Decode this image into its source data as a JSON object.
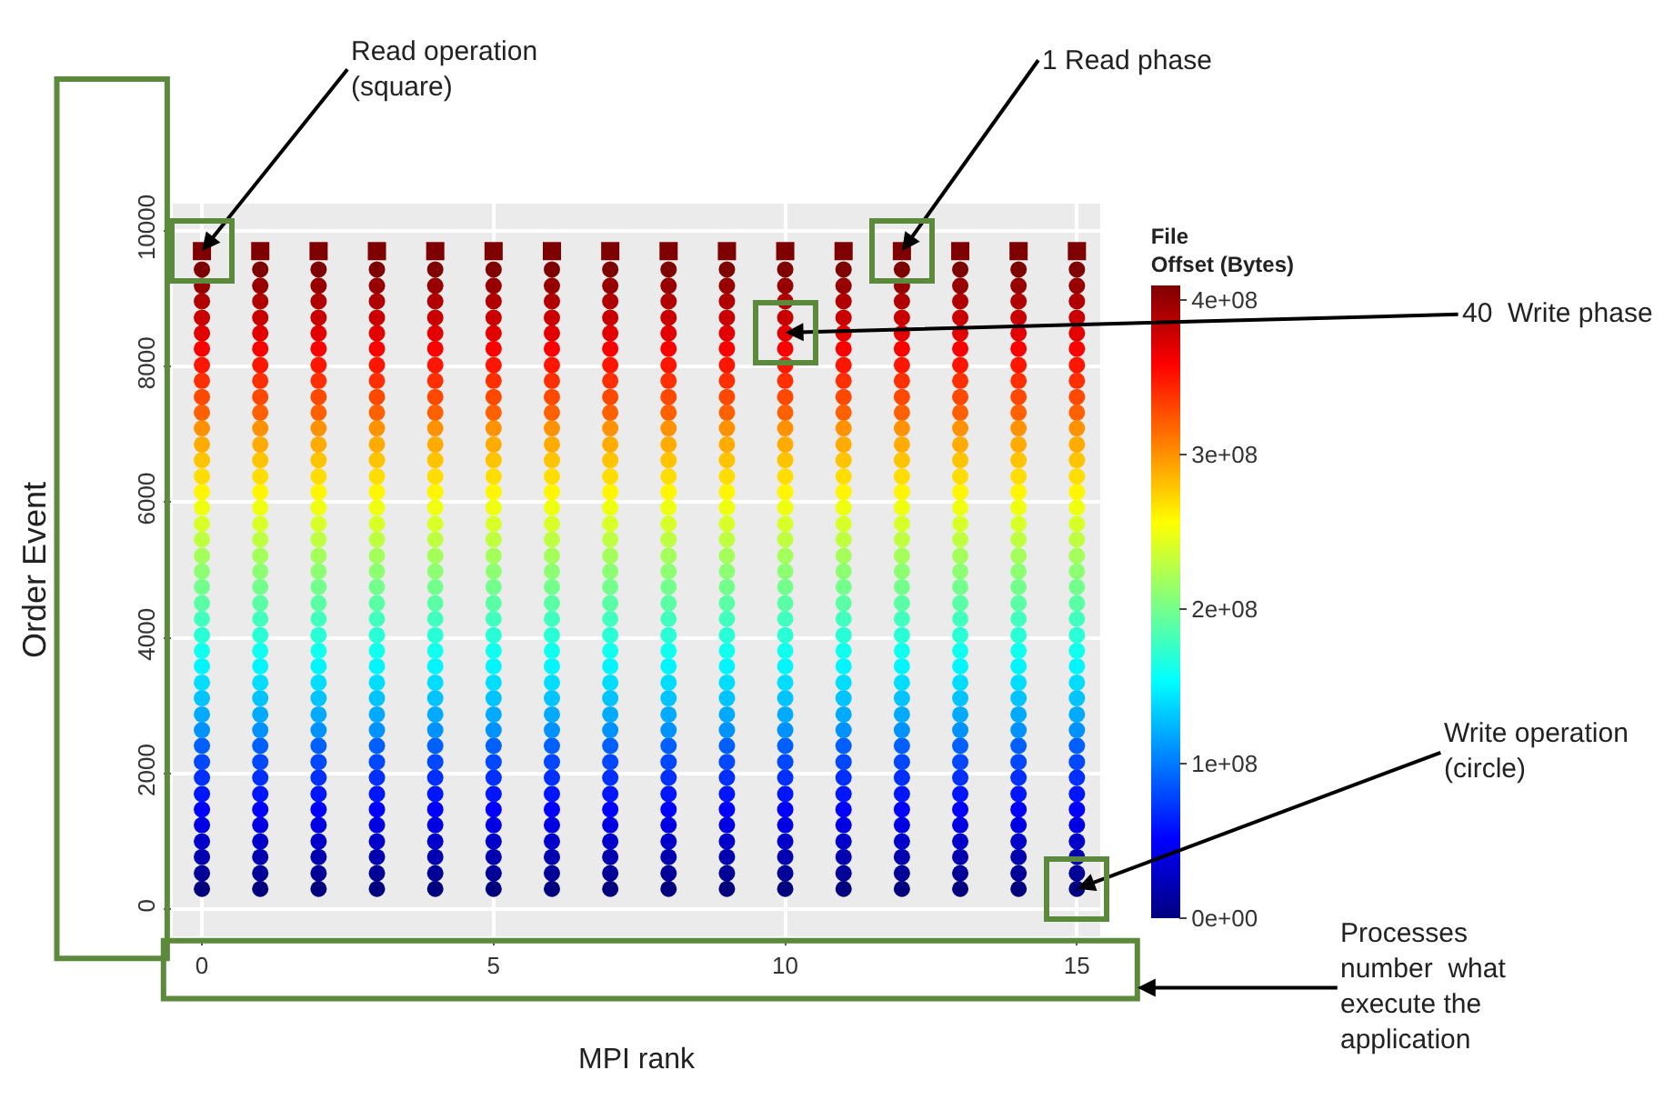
{
  "chart_data": {
    "type": "scatter",
    "xlabel": "MPI rank",
    "ylabel": "Order Event",
    "clabel": "File\nOffset (Bytes)",
    "xlim": [
      -0.5,
      15.4
    ],
    "xticks": [
      0,
      5,
      10,
      15
    ],
    "ylim": [
      -400,
      10400
    ],
    "yticks": [
      0,
      2000,
      4000,
      6000,
      8000,
      10000
    ],
    "clim": [
      0,
      410000000.0
    ],
    "cticks": [
      {
        "value": 0,
        "label": "0e+00"
      },
      {
        "value": 100000000.0,
        "label": "1e+08"
      },
      {
        "value": 200000000.0,
        "label": "2e+08"
      },
      {
        "value": 300000000.0,
        "label": "3e+08"
      },
      {
        "value": 400000000.0,
        "label": "4e+08"
      }
    ],
    "grid": true,
    "marker": "circle",
    "annotations": [
      {
        "text": "Read operation\n(square)",
        "x": 0,
        "y": 9700
      },
      {
        "text": "1 Read phase",
        "x": 12,
        "y": 9700
      },
      {
        "text": "40  Write phase",
        "x": 10,
        "y": 8500
      },
      {
        "text": "Write operation\n(circle)",
        "x": 15,
        "y": 300
      },
      "Processes\nnumber  what\nexecute the\napplication"
    ],
    "x": [
      0,
      1,
      2,
      3,
      4,
      5,
      6,
      7,
      8,
      9,
      10,
      11,
      12,
      13,
      14,
      15
    ],
    "series": [
      {
        "values": [
          300,
          300,
          300,
          300,
          300,
          300,
          300,
          300,
          300,
          300,
          300,
          300,
          300,
          300,
          300,
          300
        ],
        "cvalues": [
          0,
          0,
          0,
          0,
          0,
          0,
          0,
          0,
          0,
          0,
          0,
          0,
          0,
          0,
          0,
          0
        ]
      },
      {
        "values": [
          530,
          530,
          530,
          530,
          530,
          530,
          530,
          530,
          530,
          530,
          530,
          530,
          530,
          530,
          530,
          530
        ],
        "cvalues": [
          10000000.0,
          10000000.0,
          10000000.0,
          10000000.0,
          10000000.0,
          10000000.0,
          10000000.0,
          10000000.0,
          10000000.0,
          10000000.0,
          10000000.0,
          10000000.0,
          10000000.0,
          10000000.0,
          10000000.0,
          10000000.0
        ]
      },
      {
        "values": [
          770,
          770,
          770,
          770,
          770,
          770,
          770,
          770,
          770,
          770,
          770,
          770,
          770,
          770,
          770,
          770
        ],
        "cvalues": [
          20000000.0,
          20000000.0,
          20000000.0,
          20000000.0,
          20000000.0,
          20000000.0,
          20000000.0,
          20000000.0,
          20000000.0,
          20000000.0,
          20000000.0,
          20000000.0,
          20000000.0,
          20000000.0,
          20000000.0,
          20000000.0
        ]
      },
      {
        "values": [
          1000,
          1000,
          1000,
          1000,
          1000,
          1000,
          1000,
          1000,
          1000,
          1000,
          1000,
          1000,
          1000,
          1000,
          1000,
          1000
        ],
        "cvalues": [
          30000000.0,
          30000000.0,
          30000000.0,
          30000000.0,
          30000000.0,
          30000000.0,
          30000000.0,
          30000000.0,
          30000000.0,
          30000000.0,
          30000000.0,
          30000000.0,
          30000000.0,
          30000000.0,
          30000000.0,
          30000000.0
        ]
      },
      {
        "values": [
          1240,
          1240,
          1240,
          1240,
          1240,
          1240,
          1240,
          1240,
          1240,
          1240,
          1240,
          1240,
          1240,
          1240,
          1240,
          1240
        ],
        "cvalues": [
          40000000.0,
          40000000.0,
          40000000.0,
          40000000.0,
          40000000.0,
          40000000.0,
          40000000.0,
          40000000.0,
          40000000.0,
          40000000.0,
          40000000.0,
          40000000.0,
          40000000.0,
          40000000.0,
          40000000.0,
          40000000.0
        ]
      },
      {
        "values": [
          1470,
          1470,
          1470,
          1470,
          1470,
          1470,
          1470,
          1470,
          1470,
          1470,
          1470,
          1470,
          1470,
          1470,
          1470,
          1470
        ],
        "cvalues": [
          50000000.0,
          50000000.0,
          50000000.0,
          50000000.0,
          50000000.0,
          50000000.0,
          50000000.0,
          50000000.0,
          50000000.0,
          50000000.0,
          50000000.0,
          50000000.0,
          50000000.0,
          50000000.0,
          50000000.0,
          50000000.0
        ]
      },
      {
        "values": [
          1700,
          1700,
          1700,
          1700,
          1700,
          1700,
          1700,
          1700,
          1700,
          1700,
          1700,
          1700,
          1700,
          1700,
          1700,
          1700
        ],
        "cvalues": [
          60000000.0,
          60000000.0,
          60000000.0,
          60000000.0,
          60000000.0,
          60000000.0,
          60000000.0,
          60000000.0,
          60000000.0,
          60000000.0,
          60000000.0,
          60000000.0,
          60000000.0,
          60000000.0,
          60000000.0,
          60000000.0
        ]
      },
      {
        "values": [
          1940,
          1940,
          1940,
          1940,
          1940,
          1940,
          1940,
          1940,
          1940,
          1940,
          1940,
          1940,
          1940,
          1940,
          1940,
          1940
        ],
        "cvalues": [
          70000000.0,
          70000000.0,
          70000000.0,
          70000000.0,
          70000000.0,
          70000000.0,
          70000000.0,
          70000000.0,
          70000000.0,
          70000000.0,
          70000000.0,
          70000000.0,
          70000000.0,
          70000000.0,
          70000000.0,
          70000000.0
        ]
      },
      {
        "values": [
          2170,
          2170,
          2170,
          2170,
          2170,
          2170,
          2170,
          2170,
          2170,
          2170,
          2170,
          2170,
          2170,
          2170,
          2170,
          2170
        ],
        "cvalues": [
          80000000.0,
          80000000.0,
          80000000.0,
          80000000.0,
          80000000.0,
          80000000.0,
          80000000.0,
          80000000.0,
          80000000.0,
          80000000.0,
          80000000.0,
          80000000.0,
          80000000.0,
          80000000.0,
          80000000.0,
          80000000.0
        ]
      },
      {
        "values": [
          2410,
          2410,
          2410,
          2410,
          2410,
          2410,
          2410,
          2410,
          2410,
          2410,
          2410,
          2410,
          2410,
          2410,
          2410,
          2410
        ],
        "cvalues": [
          90000000.0,
          90000000.0,
          90000000.0,
          90000000.0,
          90000000.0,
          90000000.0,
          90000000.0,
          90000000.0,
          90000000.0,
          90000000.0,
          90000000.0,
          90000000.0,
          90000000.0,
          90000000.0,
          90000000.0,
          90000000.0
        ]
      },
      {
        "values": [
          2640,
          2640,
          2640,
          2640,
          2640,
          2640,
          2640,
          2640,
          2640,
          2640,
          2640,
          2640,
          2640,
          2640,
          2640,
          2640
        ],
        "cvalues": [
          110000000.0,
          110000000.0,
          110000000.0,
          110000000.0,
          110000000.0,
          110000000.0,
          110000000.0,
          110000000.0,
          110000000.0,
          110000000.0,
          110000000.0,
          110000000.0,
          110000000.0,
          110000000.0,
          110000000.0,
          110000000.0
        ]
      },
      {
        "values": [
          2870,
          2870,
          2870,
          2870,
          2870,
          2870,
          2870,
          2870,
          2870,
          2870,
          2870,
          2870,
          2870,
          2870,
          2870,
          2870
        ],
        "cvalues": [
          120000000.0,
          120000000.0,
          120000000.0,
          120000000.0,
          120000000.0,
          120000000.0,
          120000000.0,
          120000000.0,
          120000000.0,
          120000000.0,
          120000000.0,
          120000000.0,
          120000000.0,
          120000000.0,
          120000000.0,
          120000000.0
        ]
      },
      {
        "values": [
          3110,
          3110,
          3110,
          3110,
          3110,
          3110,
          3110,
          3110,
          3110,
          3110,
          3110,
          3110,
          3110,
          3110,
          3110,
          3110
        ],
        "cvalues": [
          130000000.0,
          130000000.0,
          130000000.0,
          130000000.0,
          130000000.0,
          130000000.0,
          130000000.0,
          130000000.0,
          130000000.0,
          130000000.0,
          130000000.0,
          130000000.0,
          130000000.0,
          130000000.0,
          130000000.0,
          130000000.0
        ]
      },
      {
        "values": [
          3340,
          3340,
          3340,
          3340,
          3340,
          3340,
          3340,
          3340,
          3340,
          3340,
          3340,
          3340,
          3340,
          3340,
          3340,
          3340
        ],
        "cvalues": [
          140000000.0,
          140000000.0,
          140000000.0,
          140000000.0,
          140000000.0,
          140000000.0,
          140000000.0,
          140000000.0,
          140000000.0,
          140000000.0,
          140000000.0,
          140000000.0,
          140000000.0,
          140000000.0,
          140000000.0,
          140000000.0
        ]
      },
      {
        "values": [
          3580,
          3580,
          3580,
          3580,
          3580,
          3580,
          3580,
          3580,
          3580,
          3580,
          3580,
          3580,
          3580,
          3580,
          3580,
          3580
        ],
        "cvalues": [
          150000000.0,
          150000000.0,
          150000000.0,
          150000000.0,
          150000000.0,
          150000000.0,
          150000000.0,
          150000000.0,
          150000000.0,
          150000000.0,
          150000000.0,
          150000000.0,
          150000000.0,
          150000000.0,
          150000000.0,
          150000000.0
        ]
      },
      {
        "values": [
          3810,
          3810,
          3810,
          3810,
          3810,
          3810,
          3810,
          3810,
          3810,
          3810,
          3810,
          3810,
          3810,
          3810,
          3810,
          3810
        ],
        "cvalues": [
          160000000.0,
          160000000.0,
          160000000.0,
          160000000.0,
          160000000.0,
          160000000.0,
          160000000.0,
          160000000.0,
          160000000.0,
          160000000.0,
          160000000.0,
          160000000.0,
          160000000.0,
          160000000.0,
          160000000.0,
          160000000.0
        ]
      },
      {
        "values": [
          4040,
          4040,
          4040,
          4040,
          4040,
          4040,
          4040,
          4040,
          4040,
          4040,
          4040,
          4040,
          4040,
          4040,
          4040,
          4040
        ],
        "cvalues": [
          170000000.0,
          170000000.0,
          170000000.0,
          170000000.0,
          170000000.0,
          170000000.0,
          170000000.0,
          170000000.0,
          170000000.0,
          170000000.0,
          170000000.0,
          170000000.0,
          170000000.0,
          170000000.0,
          170000000.0,
          170000000.0
        ]
      },
      {
        "values": [
          4280,
          4280,
          4280,
          4280,
          4280,
          4280,
          4280,
          4280,
          4280,
          4280,
          4280,
          4280,
          4280,
          4280,
          4280,
          4280
        ],
        "cvalues": [
          180000000.0,
          180000000.0,
          180000000.0,
          180000000.0,
          180000000.0,
          180000000.0,
          180000000.0,
          180000000.0,
          180000000.0,
          180000000.0,
          180000000.0,
          180000000.0,
          180000000.0,
          180000000.0,
          180000000.0,
          180000000.0
        ]
      },
      {
        "values": [
          4510,
          4510,
          4510,
          4510,
          4510,
          4510,
          4510,
          4510,
          4510,
          4510,
          4510,
          4510,
          4510,
          4510,
          4510,
          4510
        ],
        "cvalues": [
          190000000.0,
          190000000.0,
          190000000.0,
          190000000.0,
          190000000.0,
          190000000.0,
          190000000.0,
          190000000.0,
          190000000.0,
          190000000.0,
          190000000.0,
          190000000.0,
          190000000.0,
          190000000.0,
          190000000.0,
          190000000.0
        ]
      },
      {
        "values": [
          4750,
          4750,
          4750,
          4750,
          4750,
          4750,
          4750,
          4750,
          4750,
          4750,
          4750,
          4750,
          4750,
          4750,
          4750,
          4750
        ],
        "cvalues": [
          200000000.0,
          200000000.0,
          200000000.0,
          200000000.0,
          200000000.0,
          200000000.0,
          200000000.0,
          200000000.0,
          200000000.0,
          200000000.0,
          200000000.0,
          200000000.0,
          200000000.0,
          200000000.0,
          200000000.0,
          200000000.0
        ]
      },
      {
        "values": [
          4980,
          4980,
          4980,
          4980,
          4980,
          4980,
          4980,
          4980,
          4980,
          4980,
          4980,
          4980,
          4980,
          4980,
          4980,
          4980
        ],
        "cvalues": [
          210000000.0,
          210000000.0,
          210000000.0,
          210000000.0,
          210000000.0,
          210000000.0,
          210000000.0,
          210000000.0,
          210000000.0,
          210000000.0,
          210000000.0,
          210000000.0,
          210000000.0,
          210000000.0,
          210000000.0,
          210000000.0
        ]
      },
      {
        "values": [
          5210,
          5210,
          5210,
          5210,
          5210,
          5210,
          5210,
          5210,
          5210,
          5210,
          5210,
          5210,
          5210,
          5210,
          5210,
          5210
        ],
        "cvalues": [
          220000000.0,
          220000000.0,
          220000000.0,
          220000000.0,
          220000000.0,
          220000000.0,
          220000000.0,
          220000000.0,
          220000000.0,
          220000000.0,
          220000000.0,
          220000000.0,
          220000000.0,
          220000000.0,
          220000000.0,
          220000000.0
        ]
      },
      {
        "values": [
          5450,
          5450,
          5450,
          5450,
          5450,
          5450,
          5450,
          5450,
          5450,
          5450,
          5450,
          5450,
          5450,
          5450,
          5450,
          5450
        ],
        "cvalues": [
          230000000.0,
          230000000.0,
          230000000.0,
          230000000.0,
          230000000.0,
          230000000.0,
          230000000.0,
          230000000.0,
          230000000.0,
          230000000.0,
          230000000.0,
          230000000.0,
          230000000.0,
          230000000.0,
          230000000.0,
          230000000.0
        ]
      },
      {
        "values": [
          5680,
          5680,
          5680,
          5680,
          5680,
          5680,
          5680,
          5680,
          5680,
          5680,
          5680,
          5680,
          5680,
          5680,
          5680,
          5680
        ],
        "cvalues": [
          240000000.0,
          240000000.0,
          240000000.0,
          240000000.0,
          240000000.0,
          240000000.0,
          240000000.0,
          240000000.0,
          240000000.0,
          240000000.0,
          240000000.0,
          240000000.0,
          240000000.0,
          240000000.0,
          240000000.0,
          240000000.0
        ]
      },
      {
        "values": [
          5920,
          5920,
          5920,
          5920,
          5920,
          5920,
          5920,
          5920,
          5920,
          5920,
          5920,
          5920,
          5920,
          5920,
          5920,
          5920
        ],
        "cvalues": [
          250000000.0,
          250000000.0,
          250000000.0,
          250000000.0,
          250000000.0,
          250000000.0,
          250000000.0,
          250000000.0,
          250000000.0,
          250000000.0,
          250000000.0,
          250000000.0,
          250000000.0,
          250000000.0,
          250000000.0,
          250000000.0
        ]
      },
      {
        "values": [
          6150,
          6150,
          6150,
          6150,
          6150,
          6150,
          6150,
          6150,
          6150,
          6150,
          6150,
          6150,
          6150,
          6150,
          6150,
          6150
        ],
        "cvalues": [
          260000000.0,
          260000000.0,
          260000000.0,
          260000000.0,
          260000000.0,
          260000000.0,
          260000000.0,
          260000000.0,
          260000000.0,
          260000000.0,
          260000000.0,
          260000000.0,
          260000000.0,
          260000000.0,
          260000000.0,
          260000000.0
        ]
      },
      {
        "values": [
          6380,
          6380,
          6380,
          6380,
          6380,
          6380,
          6380,
          6380,
          6380,
          6380,
          6380,
          6380,
          6380,
          6380,
          6380,
          6380
        ],
        "cvalues": [
          270000000.0,
          270000000.0,
          270000000.0,
          270000000.0,
          270000000.0,
          270000000.0,
          270000000.0,
          270000000.0,
          270000000.0,
          270000000.0,
          270000000.0,
          270000000.0,
          270000000.0,
          270000000.0,
          270000000.0,
          270000000.0
        ]
      },
      {
        "values": [
          6620,
          6620,
          6620,
          6620,
          6620,
          6620,
          6620,
          6620,
          6620,
          6620,
          6620,
          6620,
          6620,
          6620,
          6620,
          6620
        ],
        "cvalues": [
          280000000.0,
          280000000.0,
          280000000.0,
          280000000.0,
          280000000.0,
          280000000.0,
          280000000.0,
          280000000.0,
          280000000.0,
          280000000.0,
          280000000.0,
          280000000.0,
          280000000.0,
          280000000.0,
          280000000.0,
          280000000.0
        ]
      },
      {
        "values": [
          6850,
          6850,
          6850,
          6850,
          6850,
          6850,
          6850,
          6850,
          6850,
          6850,
          6850,
          6850,
          6850,
          6850,
          6850,
          6850
        ],
        "cvalues": [
          290000000.0,
          290000000.0,
          290000000.0,
          290000000.0,
          290000000.0,
          290000000.0,
          290000000.0,
          290000000.0,
          290000000.0,
          290000000.0,
          290000000.0,
          290000000.0,
          290000000.0,
          290000000.0,
          290000000.0,
          290000000.0
        ]
      },
      {
        "values": [
          7090,
          7090,
          7090,
          7090,
          7090,
          7090,
          7090,
          7090,
          7090,
          7090,
          7090,
          7090,
          7090,
          7090,
          7090,
          7090
        ],
        "cvalues": [
          300000000.0,
          300000000.0,
          300000000.0,
          300000000.0,
          300000000.0,
          300000000.0,
          300000000.0,
          300000000.0,
          300000000.0,
          300000000.0,
          300000000.0,
          300000000.0,
          300000000.0,
          300000000.0,
          300000000.0,
          300000000.0
        ]
      },
      {
        "values": [
          7320,
          7320,
          7320,
          7320,
          7320,
          7320,
          7320,
          7320,
          7320,
          7320,
          7320,
          7320,
          7320,
          7320,
          7320,
          7320
        ],
        "cvalues": [
          320000000.0,
          320000000.0,
          320000000.0,
          320000000.0,
          320000000.0,
          320000000.0,
          320000000.0,
          320000000.0,
          320000000.0,
          320000000.0,
          320000000.0,
          320000000.0,
          320000000.0,
          320000000.0,
          320000000.0,
          320000000.0
        ]
      },
      {
        "values": [
          7550,
          7550,
          7550,
          7550,
          7550,
          7550,
          7550,
          7550,
          7550,
          7550,
          7550,
          7550,
          7550,
          7550,
          7550,
          7550
        ],
        "cvalues": [
          330000000.0,
          330000000.0,
          330000000.0,
          330000000.0,
          330000000.0,
          330000000.0,
          330000000.0,
          330000000.0,
          330000000.0,
          330000000.0,
          330000000.0,
          330000000.0,
          330000000.0,
          330000000.0,
          330000000.0,
          330000000.0
        ]
      },
      {
        "values": [
          7790,
          7790,
          7790,
          7790,
          7790,
          7790,
          7790,
          7790,
          7790,
          7790,
          7790,
          7790,
          7790,
          7790,
          7790,
          7790
        ],
        "cvalues": [
          340000000.0,
          340000000.0,
          340000000.0,
          340000000.0,
          340000000.0,
          340000000.0,
          340000000.0,
          340000000.0,
          340000000.0,
          340000000.0,
          340000000.0,
          340000000.0,
          340000000.0,
          340000000.0,
          340000000.0,
          340000000.0
        ]
      },
      {
        "values": [
          8020,
          8020,
          8020,
          8020,
          8020,
          8020,
          8020,
          8020,
          8020,
          8020,
          8020,
          8020,
          8020,
          8020,
          8020,
          8020
        ],
        "cvalues": [
          350000000.0,
          350000000.0,
          350000000.0,
          350000000.0,
          350000000.0,
          350000000.0,
          350000000.0,
          350000000.0,
          350000000.0,
          350000000.0,
          350000000.0,
          350000000.0,
          350000000.0,
          350000000.0,
          350000000.0,
          350000000.0
        ]
      },
      {
        "values": [
          8260,
          8260,
          8260,
          8260,
          8260,
          8260,
          8260,
          8260,
          8260,
          8260,
          8260,
          8260,
          8260,
          8260,
          8260,
          8260
        ],
        "cvalues": [
          360000000.0,
          360000000.0,
          360000000.0,
          360000000.0,
          360000000.0,
          360000000.0,
          360000000.0,
          360000000.0,
          360000000.0,
          360000000.0,
          360000000.0,
          360000000.0,
          360000000.0,
          360000000.0,
          360000000.0,
          360000000.0
        ]
      },
      {
        "values": [
          8490,
          8490,
          8490,
          8490,
          8490,
          8490,
          8490,
          8490,
          8490,
          8490,
          8490,
          8490,
          8490,
          8490,
          8490,
          8490
        ],
        "cvalues": [
          370000000.0,
          370000000.0,
          370000000.0,
          370000000.0,
          370000000.0,
          370000000.0,
          370000000.0,
          370000000.0,
          370000000.0,
          370000000.0,
          370000000.0,
          370000000.0,
          370000000.0,
          370000000.0,
          370000000.0,
          370000000.0
        ]
      },
      {
        "values": [
          8720,
          8720,
          8720,
          8720,
          8720,
          8720,
          8720,
          8720,
          8720,
          8720,
          8720,
          8720,
          8720,
          8720,
          8720,
          8720
        ],
        "cvalues": [
          380000000.0,
          380000000.0,
          380000000.0,
          380000000.0,
          380000000.0,
          380000000.0,
          380000000.0,
          380000000.0,
          380000000.0,
          380000000.0,
          380000000.0,
          380000000.0,
          380000000.0,
          380000000.0,
          380000000.0,
          380000000.0
        ]
      },
      {
        "values": [
          8960,
          8960,
          8960,
          8960,
          8960,
          8960,
          8960,
          8960,
          8960,
          8960,
          8960,
          8960,
          8960,
          8960,
          8960,
          8960
        ],
        "cvalues": [
          390000000.0,
          390000000.0,
          390000000.0,
          390000000.0,
          390000000.0,
          390000000.0,
          390000000.0,
          390000000.0,
          390000000.0,
          390000000.0,
          390000000.0,
          390000000.0,
          390000000.0,
          390000000.0,
          390000000.0,
          390000000.0
        ]
      },
      {
        "values": [
          9190,
          9190,
          9190,
          9190,
          9190,
          9190,
          9190,
          9190,
          9190,
          9190,
          9190,
          9190,
          9190,
          9190,
          9190,
          9190
        ],
        "cvalues": [
          400000000.0,
          400000000.0,
          400000000.0,
          400000000.0,
          400000000.0,
          400000000.0,
          400000000.0,
          400000000.0,
          400000000.0,
          400000000.0,
          400000000.0,
          400000000.0,
          400000000.0,
          400000000.0,
          400000000.0,
          400000000.0
        ]
      },
      {
        "values": [
          9430,
          9430,
          9430,
          9430,
          9430,
          9430,
          9430,
          9430,
          9430,
          9430,
          9430,
          9430,
          9430,
          9430,
          9430,
          9430
        ],
        "cvalues": [
          410000000.0,
          410000000.0,
          410000000.0,
          410000000.0,
          410000000.0,
          410000000.0,
          410000000.0,
          410000000.0,
          410000000.0,
          410000000.0,
          410000000.0,
          410000000.0,
          410000000.0,
          410000000.0,
          410000000.0,
          410000000.0
        ]
      },
      {
        "marker": "square",
        "values": [
          9700,
          9700,
          9700,
          9700,
          9700,
          9700,
          9700,
          9700,
          9700,
          9700,
          9700,
          9700,
          9700,
          9700,
          9700,
          9700
        ],
        "cvalues": [
          410000000.0,
          410000000.0,
          410000000.0,
          410000000.0,
          410000000.0,
          410000000.0,
          410000000.0,
          410000000.0,
          410000000.0,
          410000000.0,
          410000000.0,
          410000000.0,
          410000000.0,
          410000000.0,
          410000000.0,
          410000000.0
        ]
      }
    ]
  }
}
